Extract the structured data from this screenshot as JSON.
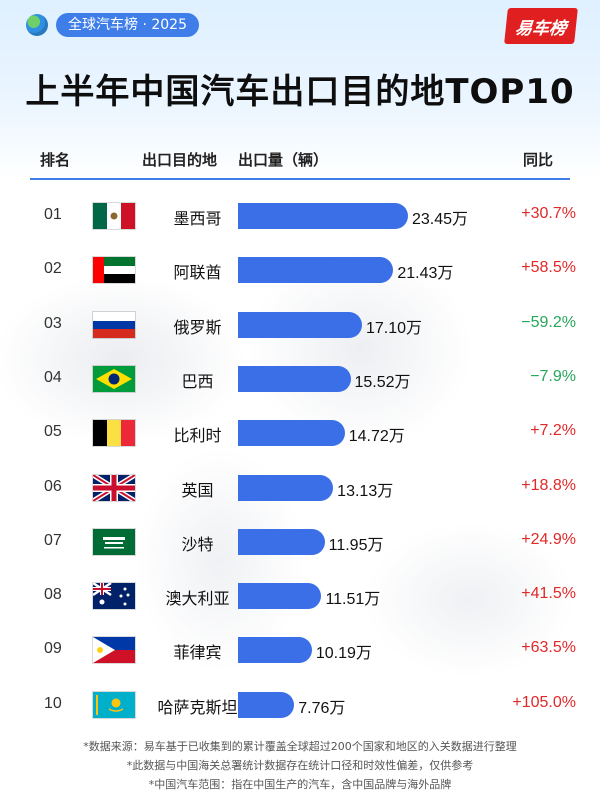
{
  "badge": "全球汽车榜 · 2025",
  "logo_text": "易车榜",
  "title": "上半年中国汽车出口目的地TOP10",
  "columns": {
    "rank": "排名",
    "destination": "出口目的地",
    "volume": "出口量（辆）",
    "yoy": "同比"
  },
  "rows": [
    {
      "rank": "01",
      "country": "墨西哥",
      "value_label": "23.45万",
      "yoy": "+30.7%",
      "flag": "mexico"
    },
    {
      "rank": "02",
      "country": "阿联酋",
      "value_label": "21.43万",
      "yoy": "+58.5%",
      "flag": "uae"
    },
    {
      "rank": "03",
      "country": "俄罗斯",
      "value_label": "17.10万",
      "yoy": "−59.2%",
      "flag": "russia"
    },
    {
      "rank": "04",
      "country": "巴西",
      "value_label": "15.52万",
      "yoy": "−7.9%",
      "flag": "brazil"
    },
    {
      "rank": "05",
      "country": "比利时",
      "value_label": "14.72万",
      "yoy": "+7.2%",
      "flag": "belgium"
    },
    {
      "rank": "06",
      "country": "英国",
      "value_label": "13.13万",
      "yoy": "+18.8%",
      "flag": "uk"
    },
    {
      "rank": "07",
      "country": "沙特",
      "value_label": "11.95万",
      "yoy": "+24.9%",
      "flag": "saudi"
    },
    {
      "rank": "08",
      "country": "澳大利亚",
      "value_label": "11.51万",
      "yoy": "+41.5%",
      "flag": "australia"
    },
    {
      "rank": "09",
      "country": "菲律宾",
      "value_label": "10.19万",
      "yoy": "+63.5%",
      "flag": "philippines"
    },
    {
      "rank": "10",
      "country": "哈萨克斯坦",
      "value_label": "7.76万",
      "yoy": "+105.0%",
      "flag": "kazakhstan"
    }
  ],
  "notes": [
    "*数据来源：易车基于已收集到的累计覆盖全球超过200个国家和地区的入关数据进行整理",
    "*此数据与中国海关总署统计数据存在统计口径和时效性偏差，仅供参考",
    "*中国汽车范围：指在中国生产的汽车，含中国品牌与海外品牌"
  ],
  "colors": {
    "bar": "#3a6fe8",
    "positive": "#e02828",
    "negative": "#26a65b",
    "accent": "#3f7ee8"
  },
  "chart_data": {
    "type": "bar",
    "orientation": "horizontal",
    "title": "上半年中国汽车出口目的地TOP10",
    "categories": [
      "墨西哥",
      "阿联酋",
      "俄罗斯",
      "巴西",
      "比利时",
      "英国",
      "沙特",
      "澳大利亚",
      "菲律宾",
      "哈萨克斯坦"
    ],
    "values": [
      23.45,
      21.43,
      17.1,
      15.52,
      14.72,
      13.13,
      11.95,
      11.51,
      10.19,
      7.76
    ],
    "unit": "万",
    "ylabel": "出口量（辆）",
    "yoy": [
      "+30.7%",
      "+58.5%",
      "−59.2%",
      "−7.9%",
      "+7.2%",
      "+18.8%",
      "+24.9%",
      "+41.5%",
      "+63.5%",
      "+105.0%"
    ]
  }
}
